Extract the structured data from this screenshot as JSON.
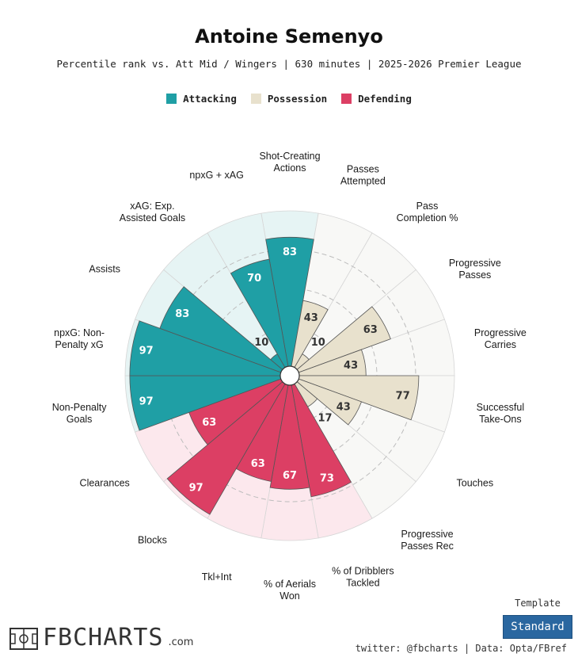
{
  "title": "Antoine Semenyo",
  "subtitle": "Percentile rank vs. Att Mid / Wingers | 630 minutes | 2025-2026 Premier League",
  "legend": [
    {
      "label": "Attacking",
      "color": "#1f9fa5"
    },
    {
      "label": "Possession",
      "color": "#e8e1cd"
    },
    {
      "label": "Defending",
      "color": "#dc3f64"
    }
  ],
  "chart_data": {
    "type": "polar-bar",
    "title": "Antoine Semenyo",
    "rlim": [
      0,
      100
    ],
    "categories": [
      {
        "label": "Shot-Creating Actions",
        "group": "Attacking",
        "value": 83
      },
      {
        "label": "Passes Attempted",
        "group": "Possession",
        "value": 43
      },
      {
        "label": "Pass Completion %",
        "group": "Possession",
        "value": 10
      },
      {
        "label": "Progressive Passes",
        "group": "Possession",
        "value": 63
      },
      {
        "label": "Progressive Carries",
        "group": "Possession",
        "value": 43
      },
      {
        "label": "Successful Take-Ons",
        "group": "Possession",
        "value": 77
      },
      {
        "label": "Touches",
        "group": "Possession",
        "value": 43
      },
      {
        "label": "Progressive Passes Rec",
        "group": "Possession",
        "value": 17
      },
      {
        "label": "% of Dribblers Tackled",
        "group": "Defending",
        "value": 73
      },
      {
        "label": "% of Aerials Won",
        "group": "Defending",
        "value": 67
      },
      {
        "label": "Tkl+Int",
        "group": "Defending",
        "value": 63
      },
      {
        "label": "Blocks",
        "group": "Defending",
        "value": 97
      },
      {
        "label": "Clearances",
        "group": "Defending",
        "value": 63
      },
      {
        "label": "Non-Penalty Goals",
        "group": "Attacking",
        "value": 97
      },
      {
        "label": "npxG: Non-Penalty xG",
        "group": "Attacking",
        "value": 97
      },
      {
        "label": "Assists",
        "group": "Attacking",
        "value": 83
      },
      {
        "label": "xAG: Exp. Assisted Goals",
        "group": "Attacking",
        "value": 10
      },
      {
        "label": "npxG + xAG",
        "group": "Attacking",
        "value": 70
      }
    ]
  },
  "footer": {
    "logo_text": "FBCHARTS",
    "logo_suffix": ".com",
    "credit": "twitter: @fbcharts | Data: Opta/FBref",
    "template_label": "Template",
    "template_value": "Standard"
  }
}
